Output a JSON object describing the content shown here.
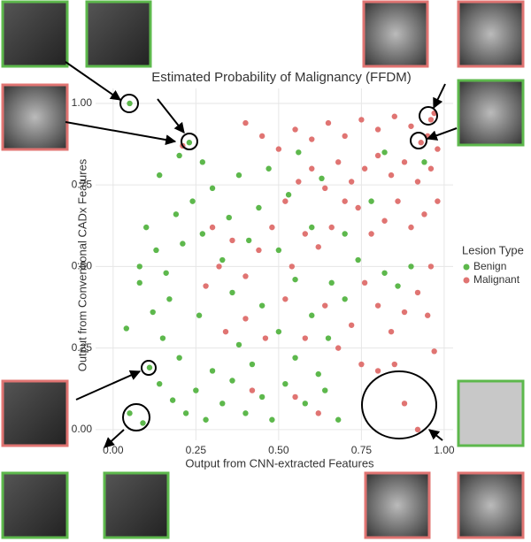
{
  "chart_data": {
    "type": "scatter",
    "title": "Estimated Probability of Malignancy (FFDM)",
    "x_label": "Output from CNN-extracted Features",
    "y_label": "Output from Conventional CADx Features",
    "legend_title": "Lesion Type",
    "xlim": [
      -0.053,
      1.027
    ],
    "ylim": [
      -0.033,
      1.046
    ],
    "xticks": [
      {
        "value": 0,
        "label": "0.00"
      },
      0.25,
      {
        "value": 0.5,
        "label": "0.50"
      },
      0.75,
      {
        "value": 1,
        "label": "1.00"
      }
    ],
    "yticks": [
      {
        "value": 0,
        "label": "0.00"
      },
      0.25,
      {
        "value": 0.5,
        "label": "0.50"
      },
      0.75,
      {
        "value": 1,
        "label": "1.00"
      }
    ],
    "grid": true,
    "series": [
      {
        "name": "Benign",
        "color": "#5db84c",
        "x": [
          0.05,
          0.23,
          0.11,
          0.05,
          0.09,
          0.04,
          0.08,
          0.12,
          0.15,
          0.14,
          0.18,
          0.2,
          0.22,
          0.25,
          0.28,
          0.3,
          0.33,
          0.36,
          0.38,
          0.4,
          0.42,
          0.45,
          0.48,
          0.5,
          0.52,
          0.55,
          0.58,
          0.6,
          0.62,
          0.65,
          0.68,
          0.7,
          0.1,
          0.13,
          0.16,
          0.19,
          0.21,
          0.24,
          0.27,
          0.3,
          0.33,
          0.35,
          0.38,
          0.41,
          0.44,
          0.47,
          0.5,
          0.53,
          0.56,
          0.6,
          0.63,
          0.66,
          0.7,
          0.74,
          0.78,
          0.82,
          0.86,
          0.9,
          0.94,
          0.82,
          0.14,
          0.2,
          0.27,
          0.08,
          0.17,
          0.26,
          0.36,
          0.45,
          0.55,
          0.64
        ],
        "values": [
          1.0,
          0.88,
          0.19,
          0.05,
          0.02,
          0.31,
          0.45,
          0.36,
          0.28,
          0.14,
          0.09,
          0.22,
          0.05,
          0.12,
          0.03,
          0.18,
          0.08,
          0.15,
          0.26,
          0.05,
          0.2,
          0.1,
          0.03,
          0.3,
          0.14,
          0.22,
          0.08,
          0.35,
          0.17,
          0.28,
          0.03,
          0.4,
          0.62,
          0.55,
          0.48,
          0.66,
          0.57,
          0.7,
          0.6,
          0.74,
          0.52,
          0.65,
          0.78,
          0.58,
          0.68,
          0.8,
          0.55,
          0.72,
          0.85,
          0.62,
          0.77,
          0.45,
          0.6,
          0.52,
          0.7,
          0.48,
          0.44,
          0.5,
          0.82,
          0.85,
          0.78,
          0.84,
          0.82,
          0.5,
          0.4,
          0.35,
          0.42,
          0.38,
          0.46,
          0.12
        ]
      },
      {
        "name": "Malignant",
        "color": "#e07472",
        "x": [
          0.21,
          0.88,
          0.92,
          0.93,
          0.96,
          0.97,
          0.95,
          0.9,
          0.85,
          0.8,
          0.75,
          0.7,
          0.65,
          0.6,
          0.55,
          0.5,
          0.45,
          0.4,
          0.98,
          0.96,
          0.92,
          0.88,
          0.84,
          0.8,
          0.76,
          0.72,
          0.68,
          0.64,
          0.6,
          0.56,
          0.52,
          0.98,
          0.94,
          0.9,
          0.86,
          0.82,
          0.78,
          0.74,
          0.7,
          0.66,
          0.62,
          0.58,
          0.54,
          0.48,
          0.44,
          0.4,
          0.36,
          0.32,
          0.28,
          0.96,
          0.92,
          0.88,
          0.84,
          0.8,
          0.76,
          0.72,
          0.68,
          0.64,
          0.58,
          0.52,
          0.46,
          0.4,
          0.34,
          0.97,
          0.95,
          0.75,
          0.8,
          0.85,
          0.62,
          0.55,
          0.42,
          0.3
        ],
        "values": [
          0.87,
          0.08,
          0.0,
          0.88,
          0.95,
          0.97,
          0.9,
          0.93,
          0.96,
          0.92,
          0.95,
          0.9,
          0.94,
          0.89,
          0.92,
          0.86,
          0.9,
          0.94,
          0.86,
          0.8,
          0.76,
          0.82,
          0.78,
          0.84,
          0.8,
          0.76,
          0.82,
          0.74,
          0.8,
          0.76,
          0.7,
          0.7,
          0.66,
          0.62,
          0.7,
          0.64,
          0.6,
          0.68,
          0.7,
          0.62,
          0.56,
          0.6,
          0.5,
          0.62,
          0.55,
          0.47,
          0.58,
          0.5,
          0.44,
          0.5,
          0.42,
          0.36,
          0.3,
          0.38,
          0.45,
          0.32,
          0.25,
          0.38,
          0.28,
          0.4,
          0.28,
          0.34,
          0.3,
          0.24,
          0.35,
          0.2,
          0.18,
          0.2,
          0.05,
          0.1,
          0.12,
          0.62
        ]
      }
    ]
  }
}
